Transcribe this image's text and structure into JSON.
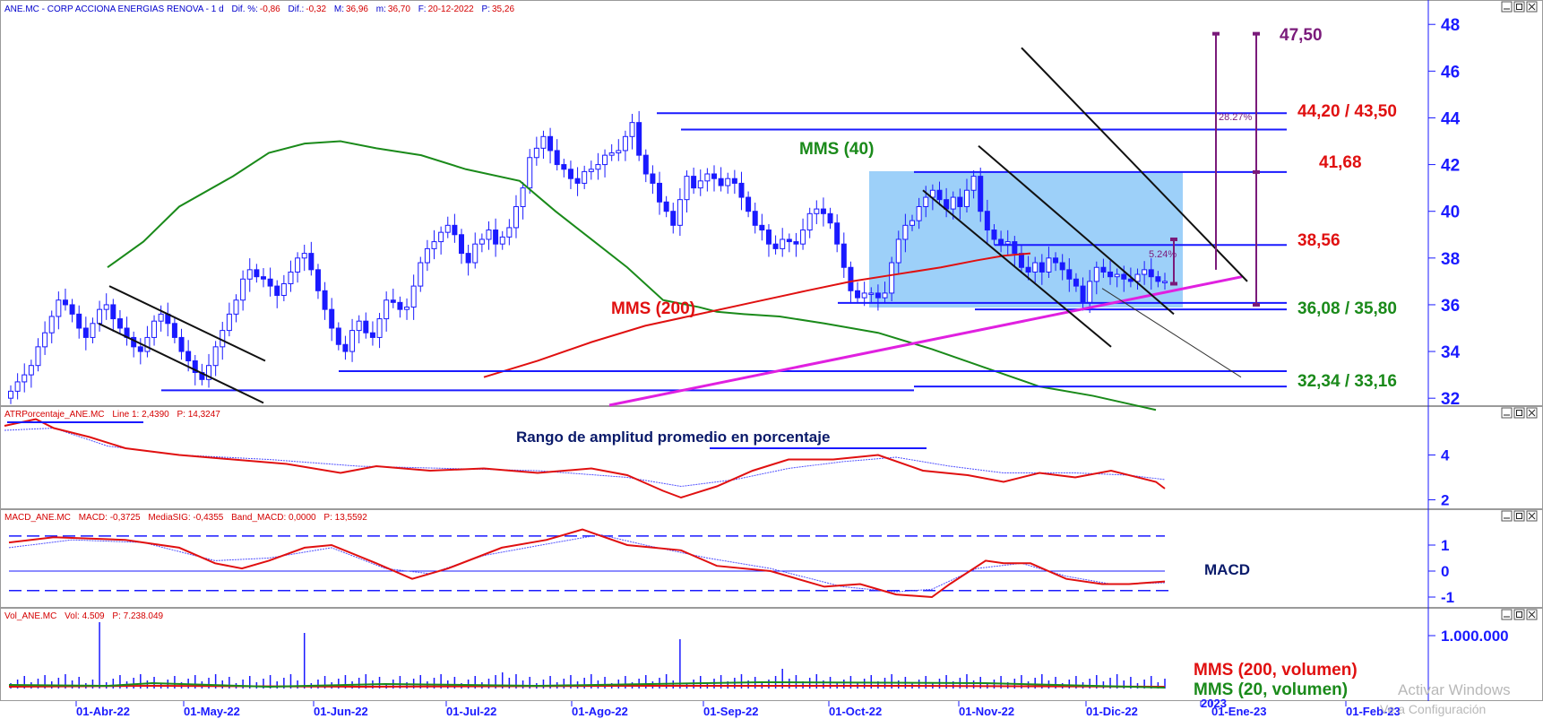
{
  "header": {
    "main": "ANE.MC - CORP ACCIONA ENERGIAS RENOVA - 1 d",
    "dif_pct_label": "Dif. %:",
    "dif_pct": "-0,86",
    "dif_label": "Dif.:",
    "dif": "-0,32",
    "max_label": "M:",
    "max": "36,96",
    "min_label": "m:",
    "min": "36,70",
    "date_label": "F:",
    "date": "20-12-2022",
    "price_label": "P:",
    "price": "35,26"
  },
  "panels": {
    "atr": {
      "title": "ATRPorcentaje_ANE.MC",
      "line_label": "Line 1: 2,4390",
      "p_label": "P: 14,3247",
      "note": "Rango de amplitud promedio en porcentaje"
    },
    "macd": {
      "title": "MACD_ANE.MC",
      "macd_label": "MACD: -0,3725",
      "sig_label": "MediaSIG: -0,4355",
      "band_label": "Band_MACD: 0,0000",
      "p_label": "P: 13,5592",
      "note": "MACD"
    },
    "vol": {
      "title": "Vol_ANE.MC",
      "vol_label": "Vol: 4.509",
      "p_label": "P: 7.238.049",
      "legend_200": "MMS (200, volumen)",
      "legend_20": "MMS (20, volumen)"
    }
  },
  "annotations": {
    "mms40": "MMS (40)",
    "mms200": "MMS (200)",
    "lvl_4750": "47,50",
    "lvl_4420": "44,20 / 43,50",
    "lvl_4168": "41,68",
    "lvl_3856": "38,56",
    "lvl_3608": "36,08 / 35,80",
    "lvl_3234": "32,34 / 33,16",
    "pct_2827": "28.27%",
    "pct_524": "5.24%"
  },
  "watermark": {
    "line1": "Activar Windows",
    "line2": "Ve a Configuración"
  },
  "colors": {
    "axis": "#1a1aff",
    "up_candle": "#ffffff",
    "down_candle": "#1a1aff",
    "mms40": "#1a8a1a",
    "mms200": "#e01010",
    "trend": "#e020e0",
    "box": "#8cc8f8"
  },
  "chart_data": {
    "type": "candlestick",
    "price_axis": {
      "ylim": [
        31.7,
        48.2
      ],
      "ticks": [
        32,
        34,
        36,
        38,
        40,
        42,
        44,
        46,
        48
      ]
    },
    "atr_axis": {
      "ticks": [
        2,
        4
      ]
    },
    "macd_axis": {
      "ticks": [
        -1,
        0,
        1
      ]
    },
    "vol_axis": {
      "ticks": [
        "1.000.000"
      ]
    },
    "date_ticks": [
      "01-Abr-22",
      "01-May-22",
      "01-Jun-22",
      "01-Jul-22",
      "01-Ago-22",
      "01-Sep-22",
      "01-Oct-22",
      "01-Nov-22",
      "01-Dic-22",
      "2023",
      "01-Ene-23",
      "01-Feb-23"
    ],
    "closes": [
      32.3,
      32.7,
      33.0,
      33.4,
      34.2,
      34.8,
      35.5,
      36.2,
      36.0,
      35.6,
      35.0,
      34.6,
      35.2,
      35.8,
      36.0,
      35.4,
      35.0,
      34.6,
      34.2,
      34.0,
      34.6,
      35.3,
      35.6,
      35.2,
      34.6,
      34.0,
      33.6,
      33.1,
      32.8,
      33.4,
      34.2,
      34.9,
      35.6,
      36.2,
      37.1,
      37.5,
      37.2,
      37.1,
      36.8,
      36.4,
      36.9,
      37.4,
      38.0,
      38.2,
      37.5,
      36.6,
      35.8,
      35.0,
      34.3,
      34.0,
      34.9,
      35.3,
      34.8,
      34.6,
      35.4,
      36.2,
      36.1,
      35.8,
      35.9,
      36.8,
      37.8,
      38.4,
      38.7,
      39.1,
      39.4,
      39.0,
      38.2,
      37.8,
      38.6,
      38.8,
      39.2,
      38.6,
      38.9,
      39.3,
      40.2,
      41.0,
      42.3,
      42.7,
      43.2,
      42.6,
      42.0,
      41.8,
      41.4,
      41.2,
      41.7,
      41.8,
      42.0,
      42.4,
      42.5,
      42.6,
      43.2,
      43.8,
      42.4,
      41.6,
      41.2,
      40.4,
      40.0,
      39.4,
      40.5,
      41.5,
      41.0,
      41.3,
      41.6,
      41.4,
      41.1,
      41.4,
      41.2,
      40.6,
      40.0,
      39.4,
      39.2,
      38.6,
      38.4,
      38.8,
      38.7,
      38.6,
      39.2,
      39.9,
      40.1,
      39.9,
      39.5,
      38.6,
      37.6,
      36.6,
      36.3,
      36.5,
      36.5,
      36.3,
      36.5,
      37.8,
      38.8,
      39.4,
      39.6,
      40.2,
      40.6,
      40.9,
      40.5,
      40.1,
      40.6,
      40.2,
      40.9,
      41.5,
      40.0,
      39.2,
      38.8,
      38.6,
      38.7,
      38.2,
      37.6,
      37.4,
      37.8,
      37.4,
      38.0,
      37.8,
      37.5,
      37.1,
      36.8,
      36.1,
      37.0,
      37.6,
      37.4,
      37.2,
      37.3,
      37.1,
      37.0,
      37.3,
      37.5,
      37.2,
      37.0,
      37.0
    ],
    "mms40": [
      [
        0,
        30.2
      ],
      [
        40,
        34.3
      ],
      [
        80,
        35.5
      ],
      [
        120,
        37.6
      ],
      [
        160,
        38.7
      ],
      [
        200,
        40.2
      ],
      [
        260,
        41.5
      ],
      [
        300,
        42.5
      ],
      [
        340,
        42.9
      ],
      [
        380,
        43.0
      ],
      [
        420,
        42.7
      ],
      [
        470,
        42.4
      ],
      [
        520,
        41.8
      ],
      [
        580,
        41.3
      ],
      [
        620,
        40.0
      ],
      [
        660,
        38.8
      ],
      [
        700,
        37.6
      ],
      [
        740,
        36.2
      ],
      [
        780,
        35.9
      ],
      [
        800,
        35.7
      ],
      [
        830,
        35.6
      ],
      [
        870,
        35.5
      ],
      [
        920,
        35.2
      ],
      [
        980,
        34.8
      ],
      [
        1040,
        34.1
      ],
      [
        1100,
        33.3
      ],
      [
        1160,
        32.5
      ],
      [
        1220,
        32.1
      ],
      [
        1290,
        31.5
      ],
      [
        1360,
        30.7
      ],
      [
        1420,
        29.8
      ]
    ],
    "mms200": [
      [
        120,
        26
      ],
      [
        160,
        26.9
      ],
      [
        200,
        27.7
      ],
      [
        240,
        28.6
      ],
      [
        300,
        29.7
      ],
      [
        360,
        30.6
      ],
      [
        420,
        31.4
      ],
      [
        480,
        32.2
      ],
      [
        540,
        32.9
      ],
      [
        600,
        33.6
      ],
      [
        660,
        34.4
      ],
      [
        720,
        35.1
      ],
      [
        780,
        35.6
      ],
      [
        840,
        36.1
      ],
      [
        900,
        36.6
      ],
      [
        950,
        37.0
      ],
      [
        1000,
        37.3
      ],
      [
        1050,
        37.6
      ],
      [
        1090,
        37.9
      ],
      [
        1120,
        38.1
      ],
      [
        1150,
        38.2
      ]
    ],
    "levels": [
      44.2,
      43.5,
      41.68,
      38.56,
      36.08,
      35.8,
      33.16,
      32.34
    ],
    "target": 47.5,
    "pct_moves": [
      "28.27%",
      "5.24%"
    ]
  }
}
